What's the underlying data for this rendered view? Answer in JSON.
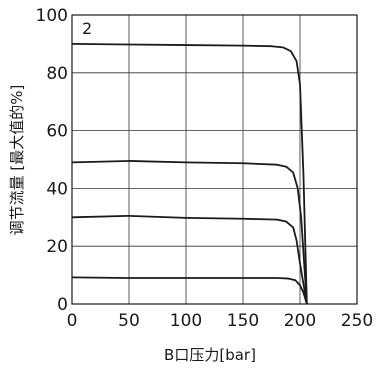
{
  "chart_data": {
    "type": "line",
    "panel_label": "2",
    "xlabel": "B口压力[bar]",
    "ylabel": "调节流量 [最大值的%]",
    "xlim": [
      0,
      250
    ],
    "ylim": [
      0,
      100
    ],
    "xticks": [
      0,
      50,
      100,
      150,
      200,
      250
    ],
    "yticks": [
      0,
      20,
      40,
      60,
      80,
      100
    ],
    "grid": true,
    "line_color": "#1a1a1a",
    "series": [
      {
        "x": [
          0,
          50,
          100,
          150,
          175,
          185,
          192,
          197,
          200,
          203,
          206
        ],
        "y": [
          90,
          89.8,
          89.6,
          89.4,
          89.2,
          88.8,
          87.5,
          84,
          76,
          45,
          0
        ]
      },
      {
        "x": [
          0,
          50,
          100,
          150,
          180,
          188,
          194,
          198,
          201,
          206
        ],
        "y": [
          49,
          49.5,
          49,
          48.7,
          48.2,
          47.5,
          45.5,
          40,
          30,
          0
        ]
      },
      {
        "x": [
          0,
          50,
          100,
          150,
          180,
          188,
          194,
          197,
          200,
          206
        ],
        "y": [
          30,
          30.5,
          29.8,
          29.5,
          29.2,
          28.5,
          26.5,
          22,
          14,
          0
        ]
      },
      {
        "x": [
          0,
          50,
          100,
          150,
          180,
          190,
          196,
          200,
          203,
          206
        ],
        "y": [
          9.2,
          9.0,
          9.0,
          9.0,
          9.0,
          8.8,
          8.2,
          6.5,
          4,
          0
        ]
      }
    ]
  }
}
